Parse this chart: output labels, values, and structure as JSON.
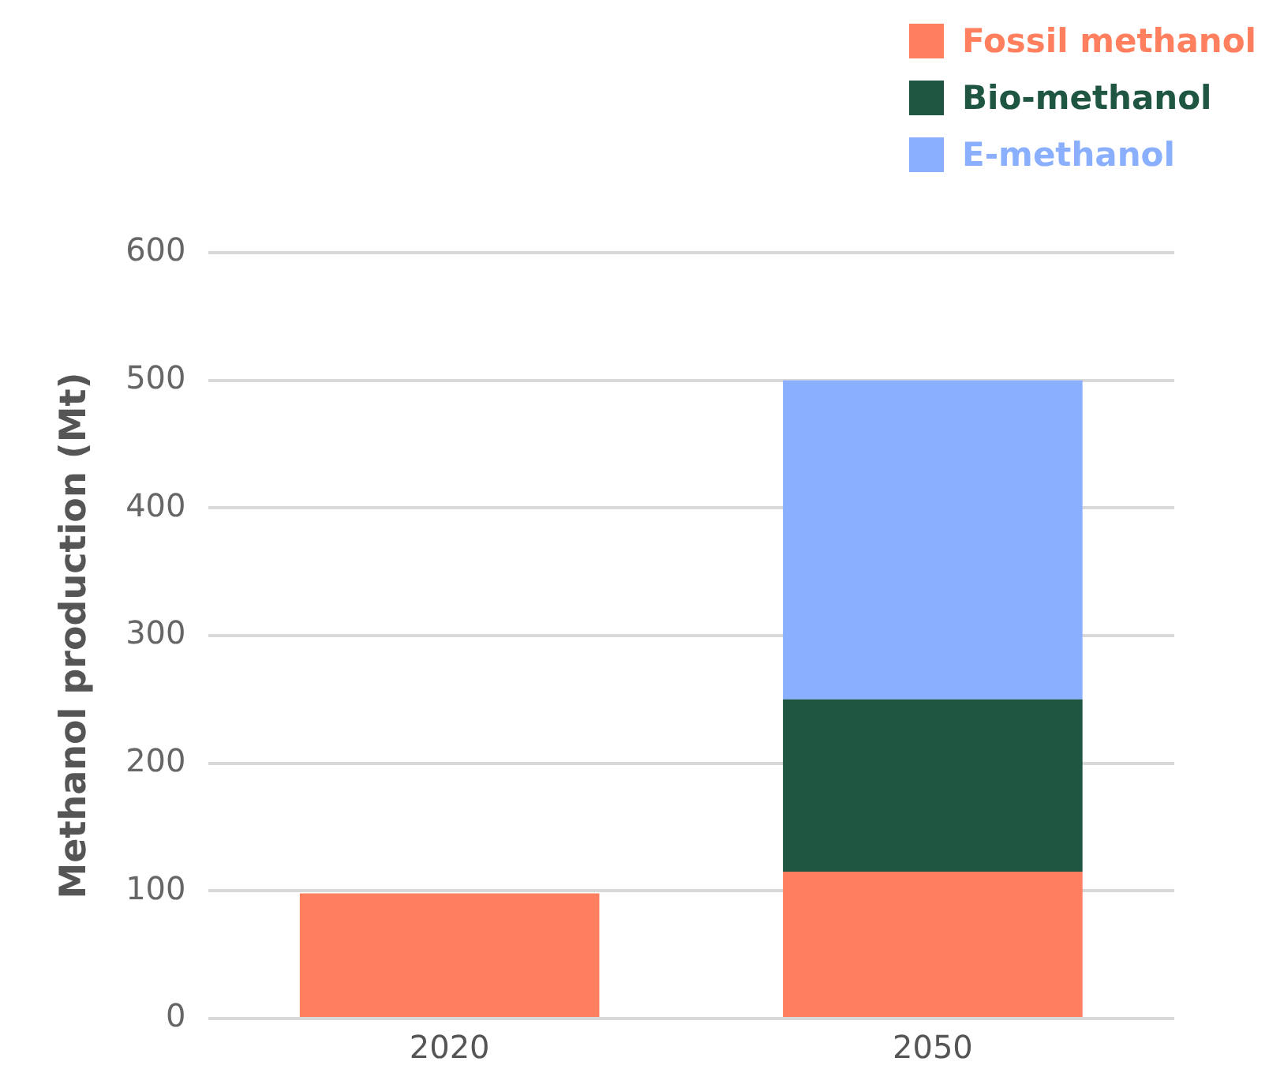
{
  "chart_data": {
    "type": "bar",
    "stacked": true,
    "ylabel": "Methanol production (Mt)",
    "categories": [
      "2020",
      "2050"
    ],
    "series": [
      {
        "name": "Fossil methanol",
        "color": "#ff7f5e",
        "values": [
          98,
          115
        ]
      },
      {
        "name": "Bio-methanol",
        "color": "#1e5641",
        "values": [
          null,
          135
        ]
      },
      {
        "name": "E-methanol",
        "color": "#8aafff",
        "values": [
          null,
          250
        ]
      }
    ],
    "ylim": [
      0,
      600
    ],
    "yticks": [
      0,
      100,
      200,
      300,
      400,
      500,
      600
    ],
    "grid": "y",
    "legend": "top right"
  }
}
